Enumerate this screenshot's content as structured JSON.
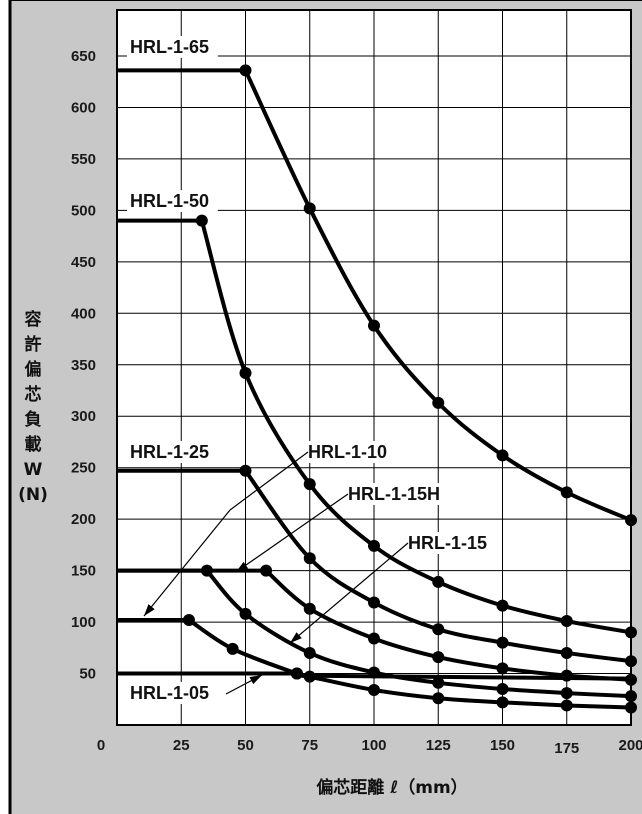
{
  "chart_data": {
    "type": "line",
    "ylabel": "容許偏芯負載",
    "ylabel_lines": [
      "容",
      "許",
      "偏",
      "芯",
      "負",
      "載",
      "W",
      "(N)"
    ],
    "xlabel": "偏芯距離 ℓ（mm）",
    "xlim": [
      0,
      200
    ],
    "ylim": [
      0,
      650
    ],
    "x_ticks": [
      "0",
      "25",
      "50",
      "75",
      "100",
      "125",
      "150",
      "175",
      "200"
    ],
    "y_ticks": [
      "50",
      "100",
      "150",
      "200",
      "250",
      "300",
      "350",
      "400",
      "450",
      "500",
      "550",
      "600",
      "650"
    ],
    "grid": true,
    "colors": {
      "background": "#c8c8c8",
      "plot": "#ffffff",
      "grid": "#000000",
      "line": "#000000"
    },
    "series": [
      {
        "name": "HRL-1-65",
        "flat": [
          0,
          636
        ],
        "points": [
          [
            50,
            636
          ],
          [
            75,
            502
          ],
          [
            100,
            388
          ],
          [
            125,
            313
          ],
          [
            150,
            262
          ],
          [
            175,
            226
          ],
          [
            200,
            199
          ]
        ]
      },
      {
        "name": "HRL-1-50",
        "flat": [
          0,
          490
        ],
        "points": [
          [
            33,
            490
          ],
          [
            50,
            342
          ],
          [
            75,
            234
          ],
          [
            100,
            174
          ],
          [
            125,
            139
          ],
          [
            150,
            116
          ],
          [
            175,
            101
          ],
          [
            200,
            90
          ]
        ]
      },
      {
        "name": "HRL-1-25",
        "flat": [
          0,
          247
        ],
        "points": [
          [
            50,
            247
          ],
          [
            75,
            162
          ],
          [
            100,
            119
          ],
          [
            125,
            93
          ],
          [
            150,
            80
          ],
          [
            175,
            70
          ],
          [
            200,
            62
          ]
        ]
      },
      {
        "name": "HRL-1-15H",
        "flat": [
          0,
          150
        ],
        "points": [
          [
            58,
            150
          ],
          [
            75,
            113
          ],
          [
            100,
            84
          ],
          [
            125,
            66
          ],
          [
            150,
            55
          ],
          [
            175,
            48
          ],
          [
            200,
            44
          ]
        ]
      },
      {
        "name": "HRL-1-15",
        "flat": [
          0,
          150
        ],
        "points": [
          [
            35,
            150
          ],
          [
            50,
            108
          ],
          [
            75,
            70
          ],
          [
            100,
            51
          ],
          [
            125,
            41
          ],
          [
            150,
            35
          ],
          [
            175,
            31
          ],
          [
            200,
            28
          ]
        ]
      },
      {
        "name": "HRL-1-10",
        "flat": [
          0,
          102
        ],
        "points": [
          [
            28,
            102
          ],
          [
            45,
            74
          ],
          [
            70,
            50
          ],
          [
            75,
            47
          ],
          [
            100,
            34
          ],
          [
            125,
            26
          ],
          [
            150,
            22
          ],
          [
            175,
            19
          ],
          [
            200,
            17
          ]
        ]
      },
      {
        "name": "HRL-1-05",
        "flat": [
          0,
          50
        ],
        "points": [
          [
            70,
            50
          ]
        ]
      }
    ],
    "labels": [
      "HRL-1-65",
      "HRL-1-50",
      "HRL-1-25",
      "HRL-1-10",
      "HRL-1-15H",
      "HRL-1-15",
      "HRL-1-05"
    ]
  }
}
